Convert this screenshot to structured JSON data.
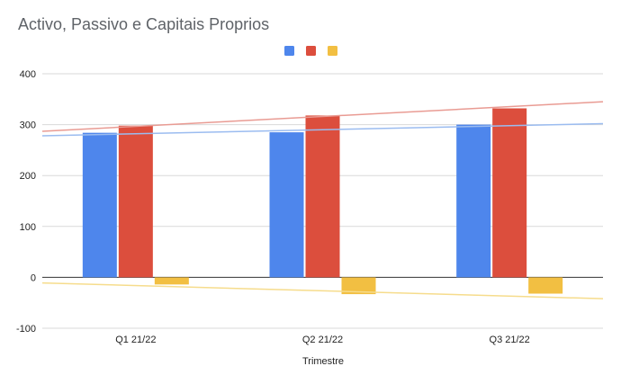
{
  "chart_data": {
    "type": "bar",
    "title": "Activo, Passivo e Capitais Proprios",
    "xlabel": "Trimestre",
    "ylabel": "",
    "categories": [
      "Q1 21/22",
      "Q2 21/22",
      "Q3 21/22"
    ],
    "series": [
      {
        "color": "#4e86ec",
        "values": [
          284,
          285,
          300
        ]
      },
      {
        "color": "#dc4e3d",
        "values": [
          298,
          318,
          332
        ]
      },
      {
        "color": "#f2bf42",
        "values": [
          -14,
          -33,
          -32
        ]
      }
    ],
    "trendlines": [
      {
        "color": "#e99b93",
        "start": 287,
        "end": 345
      },
      {
        "color": "#9bbcf0",
        "start": 278,
        "end": 302
      },
      {
        "color": "#f6dc8c",
        "start": -11,
        "end": -42
      }
    ],
    "ylim": [
      -100,
      400
    ],
    "yticks": [
      -100,
      0,
      100,
      200,
      300,
      400
    ],
    "grid": true,
    "legend_position": "top-center"
  }
}
